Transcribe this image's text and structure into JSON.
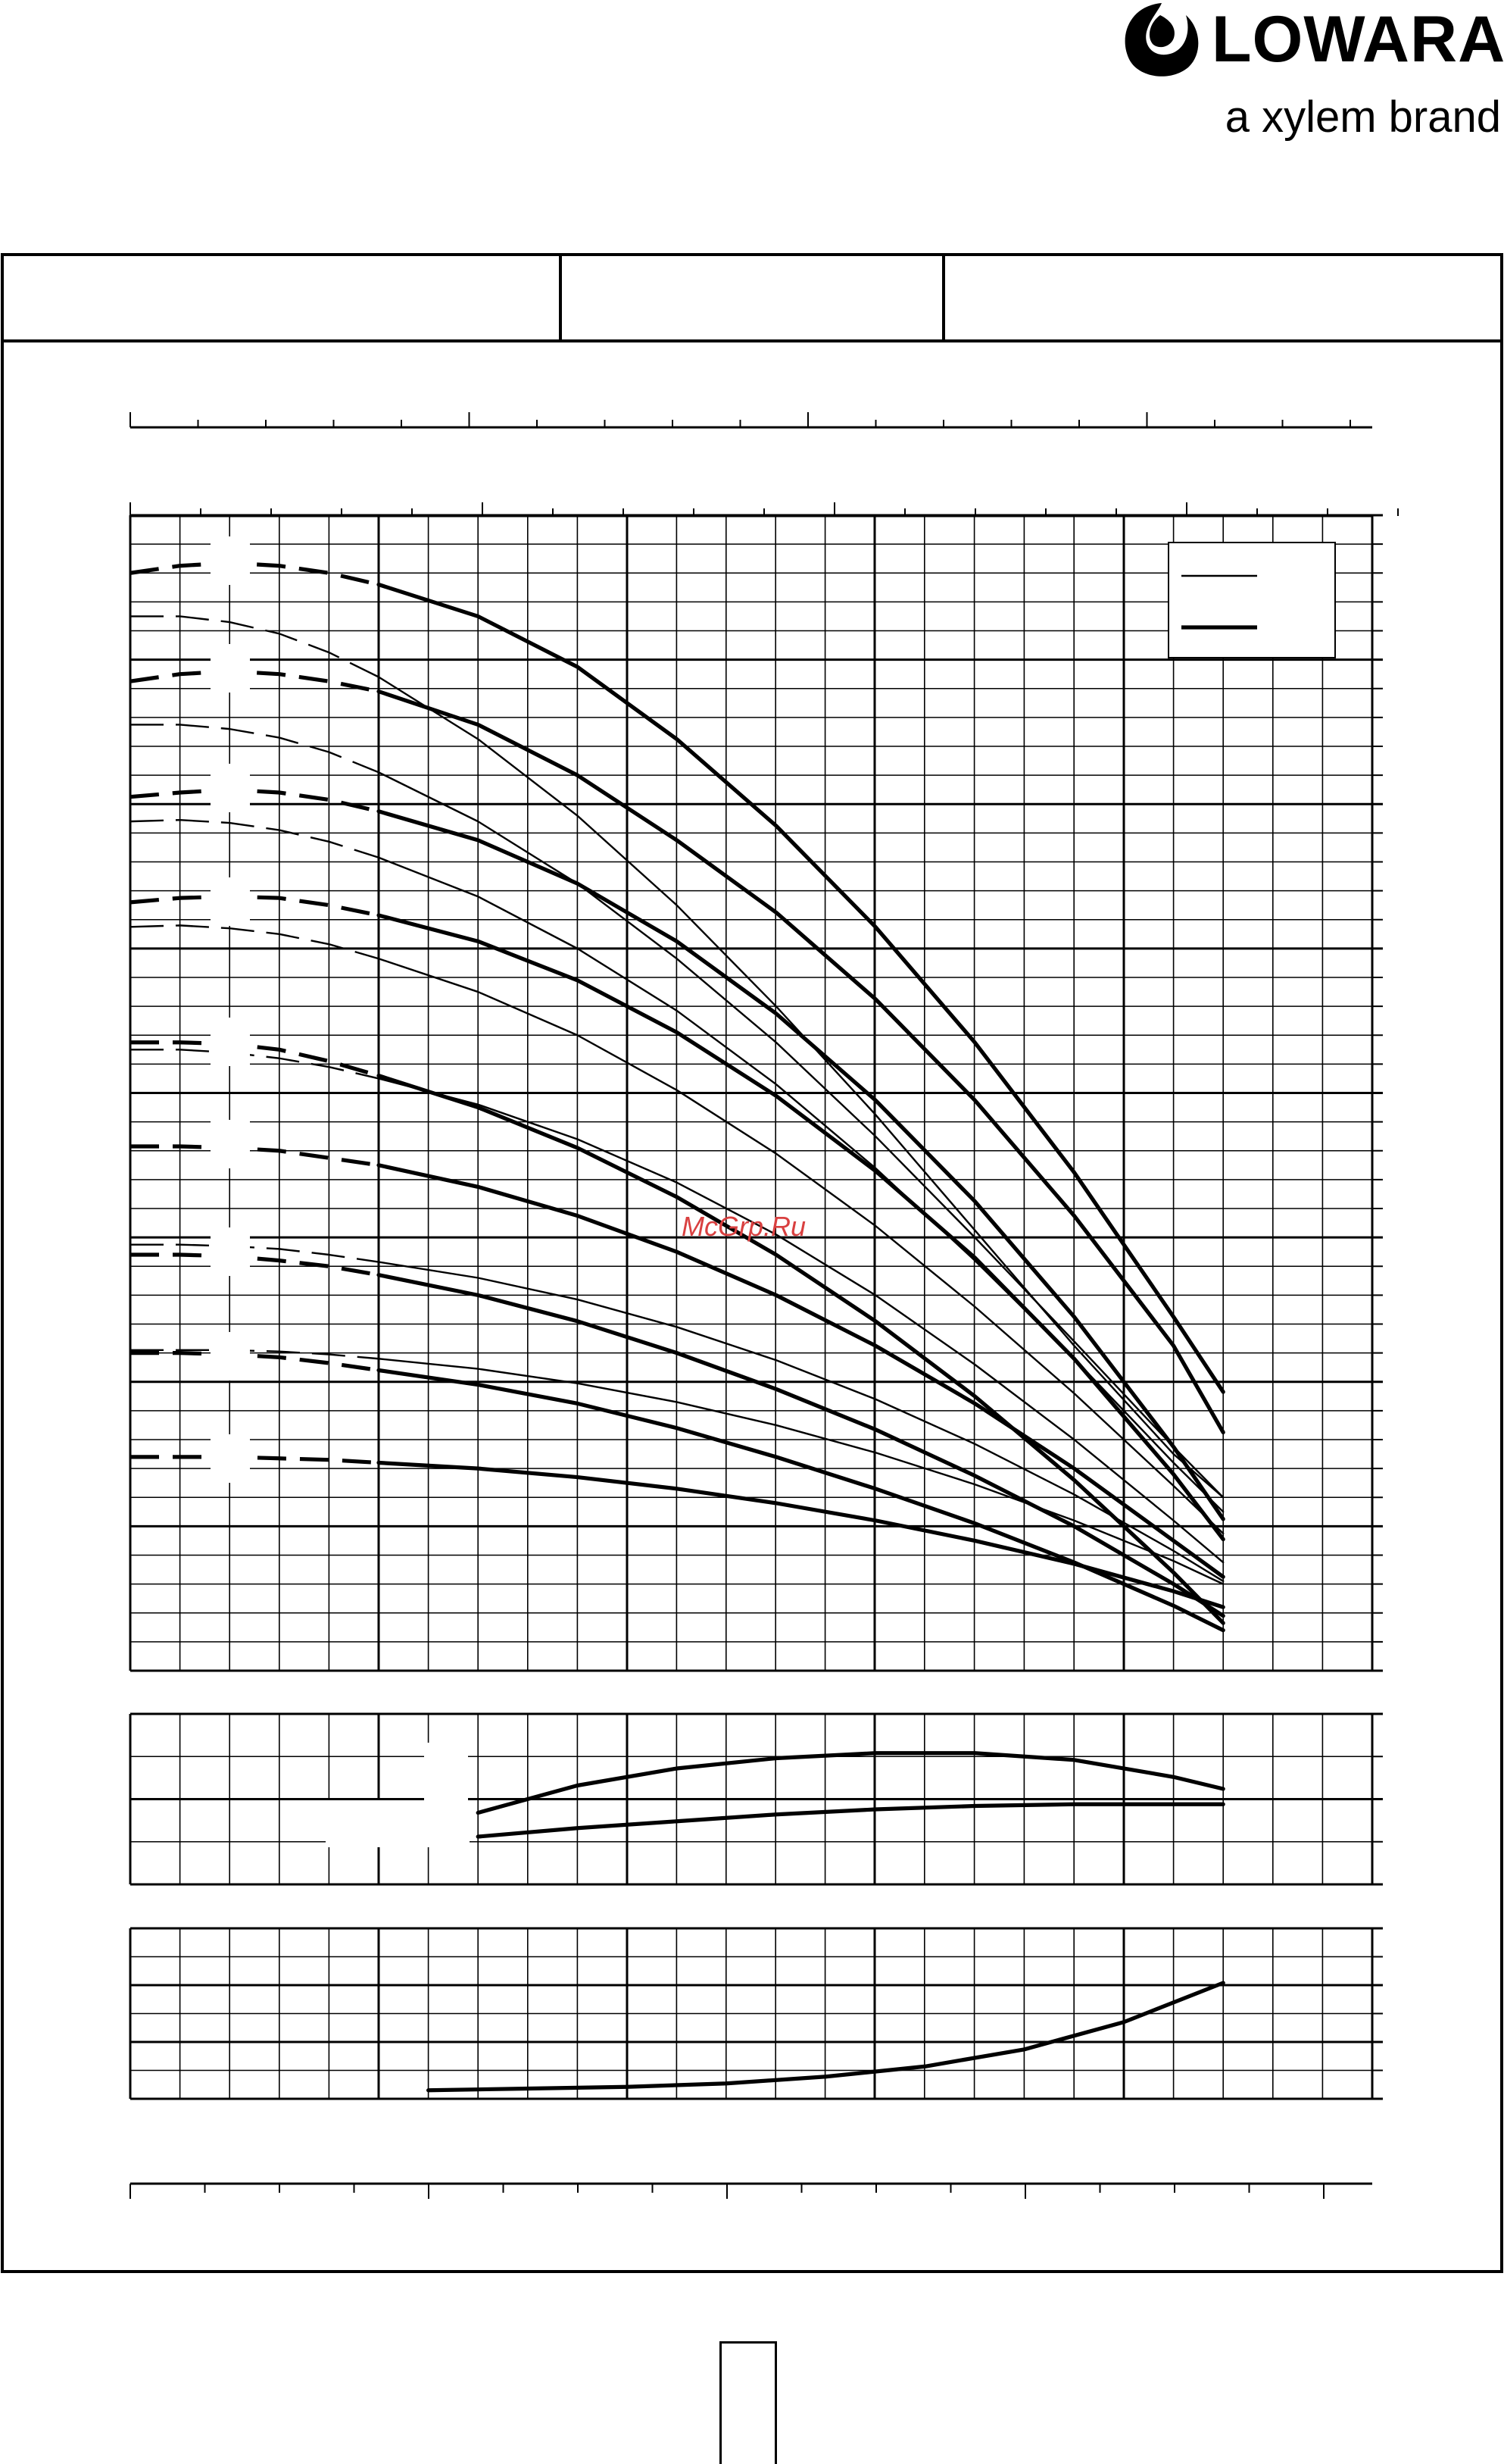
{
  "brand": {
    "name": "LOWARA",
    "tagline": "a xylem brand",
    "logo_icon": "lowara-drops-icon"
  },
  "watermark": "McGrp.Ru",
  "colors": {
    "ink": "#000000",
    "watermark": "#d94040",
    "paper": "#ffffff"
  },
  "header_table": {
    "cells": [
      "",
      "",
      ""
    ]
  },
  "chart_data": [
    {
      "type": "line",
      "panel": "head",
      "title": "",
      "xlabel": "",
      "ylabel": "",
      "xlim": [
        0,
        25
      ],
      "ylim": [
        0,
        8
      ],
      "grid": true,
      "legend": {
        "placement": "top-right",
        "entries": [
          {
            "style": "thin",
            "label": ""
          },
          {
            "style": "thick",
            "label": ""
          }
        ]
      },
      "series": [
        {
          "style": "thick",
          "dash_until": 5,
          "x": [
            0,
            1,
            2,
            3,
            4,
            5,
            7,
            9,
            11,
            13,
            15,
            17,
            19,
            21,
            22
          ],
          "y": [
            7.6,
            7.65,
            7.67,
            7.65,
            7.6,
            7.52,
            7.3,
            6.95,
            6.45,
            5.85,
            5.15,
            4.35,
            3.45,
            2.45,
            1.93
          ]
        },
        {
          "style": "thick",
          "dash_until": 5,
          "x": [
            0,
            1,
            2,
            3,
            4,
            5,
            7,
            9,
            11,
            13,
            15,
            17,
            19,
            21,
            22
          ],
          "y": [
            6.85,
            6.9,
            6.92,
            6.9,
            6.85,
            6.78,
            6.55,
            6.2,
            5.75,
            5.25,
            4.65,
            3.95,
            3.15,
            2.25,
            1.65
          ]
        },
        {
          "style": "thick",
          "dash_until": 5,
          "x": [
            0,
            1,
            2,
            3,
            4,
            5,
            7,
            9,
            11,
            13,
            15,
            17,
            19,
            21,
            22
          ],
          "y": [
            6.05,
            6.08,
            6.1,
            6.08,
            6.03,
            5.95,
            5.75,
            5.45,
            5.05,
            4.55,
            3.95,
            3.25,
            2.45,
            1.55,
            1.05
          ]
        },
        {
          "style": "thick",
          "dash_until": 5,
          "x": [
            0,
            1,
            2,
            3,
            4,
            5,
            7,
            9,
            11,
            13,
            15,
            17,
            19,
            21,
            22
          ],
          "y": [
            5.32,
            5.35,
            5.36,
            5.35,
            5.3,
            5.23,
            5.05,
            4.78,
            4.42,
            3.98,
            3.46,
            2.86,
            2.16,
            1.36,
            0.91
          ]
        },
        {
          "style": "thick",
          "dash_until": 5,
          "x": [
            0,
            1,
            2,
            3,
            4,
            5,
            7,
            9,
            11,
            13,
            15,
            17,
            19,
            21,
            22
          ],
          "y": [
            4.35,
            4.35,
            4.34,
            4.3,
            4.22,
            4.12,
            3.9,
            3.62,
            3.28,
            2.88,
            2.42,
            1.9,
            1.32,
            0.68,
            0.33
          ]
        },
        {
          "style": "thick",
          "dash_until": 5,
          "x": [
            0,
            1,
            2,
            3,
            4,
            5,
            7,
            9,
            11,
            13,
            15,
            17,
            19,
            21,
            22
          ],
          "y": [
            3.63,
            3.63,
            3.62,
            3.6,
            3.55,
            3.5,
            3.35,
            3.15,
            2.9,
            2.6,
            2.25,
            1.85,
            1.4,
            0.9,
            0.65
          ]
        },
        {
          "style": "thick",
          "dash_until": 5,
          "x": [
            0,
            1,
            2,
            3,
            4,
            5,
            7,
            9,
            11,
            13,
            15,
            17,
            19,
            21,
            22
          ],
          "y": [
            2.88,
            2.88,
            2.87,
            2.84,
            2.8,
            2.74,
            2.6,
            2.42,
            2.2,
            1.95,
            1.67,
            1.35,
            1.0,
            0.6,
            0.38
          ]
        },
        {
          "style": "thick",
          "dash_until": 5,
          "x": [
            0,
            1,
            2,
            3,
            4,
            5,
            7,
            9,
            11,
            13,
            15,
            17,
            19,
            21,
            22
          ],
          "y": [
            2.2,
            2.2,
            2.19,
            2.17,
            2.13,
            2.08,
            1.98,
            1.85,
            1.68,
            1.48,
            1.26,
            1.02,
            0.75,
            0.45,
            0.28
          ]
        },
        {
          "style": "thick",
          "dash_until": 5,
          "x": [
            0,
            1,
            2,
            3,
            4,
            5,
            7,
            9,
            11,
            13,
            15,
            17,
            19,
            21,
            22
          ],
          "y": [
            1.48,
            1.48,
            1.48,
            1.47,
            1.46,
            1.44,
            1.4,
            1.34,
            1.26,
            1.16,
            1.04,
            0.9,
            0.74,
            0.55,
            0.44
          ]
        },
        {
          "style": "thin",
          "dash_until": 5,
          "x": [
            0,
            1,
            2,
            3,
            4,
            5,
            7,
            9,
            11,
            13,
            15,
            17,
            19,
            21,
            22
          ],
          "y": [
            7.3,
            7.3,
            7.26,
            7.18,
            7.05,
            6.88,
            6.45,
            5.92,
            5.3,
            4.6,
            3.85,
            3.05,
            2.25,
            1.5,
            1.2
          ]
        },
        {
          "style": "thin",
          "dash_until": 5,
          "x": [
            0,
            1,
            2,
            3,
            4,
            5,
            7,
            9,
            11,
            13,
            15,
            17,
            19,
            21,
            22
          ],
          "y": [
            6.55,
            6.55,
            6.52,
            6.46,
            6.36,
            6.22,
            5.88,
            5.45,
            4.93,
            4.35,
            3.7,
            3.0,
            2.28,
            1.55,
            1.2
          ]
        },
        {
          "style": "thin",
          "dash_until": 5,
          "x": [
            0,
            1,
            2,
            3,
            4,
            5,
            7,
            9,
            11,
            13,
            15,
            17,
            19,
            21,
            22
          ],
          "y": [
            5.88,
            5.89,
            5.87,
            5.82,
            5.74,
            5.63,
            5.36,
            5.0,
            4.57,
            4.06,
            3.48,
            2.84,
            2.16,
            1.44,
            1.1
          ]
        },
        {
          "style": "thin",
          "dash_until": 5,
          "x": [
            0,
            1,
            2,
            3,
            4,
            5,
            7,
            9,
            11,
            13,
            15,
            17,
            19,
            21,
            22
          ],
          "y": [
            5.15,
            5.16,
            5.14,
            5.1,
            5.03,
            4.93,
            4.7,
            4.4,
            4.02,
            3.58,
            3.08,
            2.52,
            1.92,
            1.28,
            0.95
          ]
        },
        {
          "style": "thin",
          "dash_until": 5,
          "x": [
            0,
            1,
            2,
            3,
            4,
            5,
            7,
            9,
            11,
            13,
            15,
            17,
            19,
            21,
            22
          ],
          "y": [
            4.3,
            4.3,
            4.28,
            4.24,
            4.18,
            4.1,
            3.92,
            3.68,
            3.38,
            3.02,
            2.6,
            2.12,
            1.6,
            1.04,
            0.75
          ]
        },
        {
          "style": "thin",
          "dash_until": 5,
          "x": [
            0,
            1,
            2,
            3,
            4,
            5,
            7,
            9,
            11,
            13,
            15,
            17,
            19,
            21,
            22
          ],
          "y": [
            2.95,
            2.95,
            2.94,
            2.92,
            2.88,
            2.83,
            2.72,
            2.57,
            2.38,
            2.15,
            1.88,
            1.57,
            1.22,
            0.83,
            0.62
          ]
        },
        {
          "style": "thin",
          "dash_until": 5,
          "x": [
            0,
            1,
            2,
            3,
            4,
            5,
            7,
            9,
            11,
            13,
            15,
            17,
            19,
            21,
            22
          ],
          "y": [
            2.22,
            2.22,
            2.22,
            2.21,
            2.19,
            2.16,
            2.09,
            1.99,
            1.86,
            1.7,
            1.51,
            1.29,
            1.04,
            0.76,
            0.6
          ]
        }
      ]
    },
    {
      "type": "line",
      "panel": "efficiency",
      "title": "",
      "xlabel": "",
      "ylabel": "",
      "xlim": [
        0,
        25
      ],
      "ylim": [
        0,
        1
      ],
      "grid": true,
      "series": [
        {
          "style": "thick",
          "x": [
            7,
            9,
            11,
            13,
            15,
            17,
            19,
            21,
            22
          ],
          "y": [
            0.42,
            0.58,
            0.68,
            0.74,
            0.77,
            0.77,
            0.73,
            0.63,
            0.56
          ]
        },
        {
          "style": "thick",
          "x": [
            7,
            9,
            11,
            13,
            15,
            17,
            19,
            21,
            22
          ],
          "y": [
            0.28,
            0.33,
            0.37,
            0.41,
            0.44,
            0.46,
            0.47,
            0.47,
            0.47
          ]
        }
      ]
    },
    {
      "type": "line",
      "panel": "npsh",
      "title": "",
      "xlabel": "",
      "ylabel": "",
      "xlim": [
        0,
        25
      ],
      "ylim": [
        0,
        1
      ],
      "grid": true,
      "series": [
        {
          "style": "thick",
          "x": [
            6,
            8,
            10,
            12,
            14,
            16,
            18,
            20,
            22
          ],
          "y": [
            0.05,
            0.06,
            0.07,
            0.09,
            0.13,
            0.19,
            0.29,
            0.45,
            0.68
          ]
        }
      ]
    }
  ]
}
